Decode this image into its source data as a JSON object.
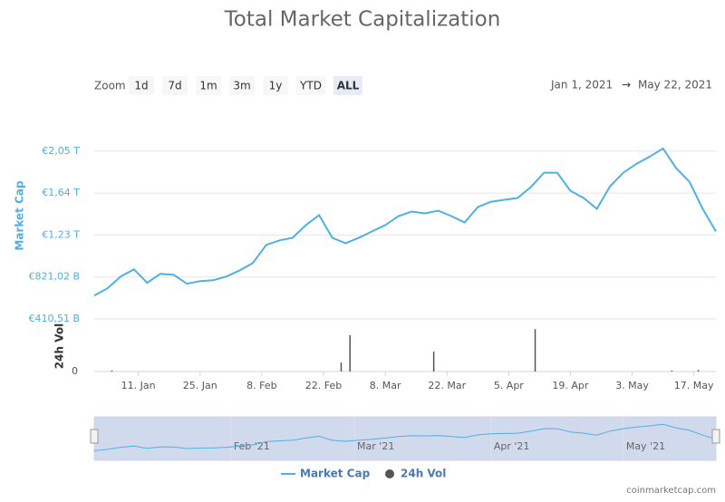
{
  "chart_data": {
    "type": "line",
    "title": "Total Market Capitalization",
    "zoom_label": "Zoom",
    "zoom_buttons": [
      "1d",
      "7d",
      "1m",
      "3m",
      "1y",
      "YTD",
      "ALL"
    ],
    "zoom_selected": "ALL",
    "range_from": "Jan 1, 2021",
    "range_arrow": "→",
    "range_to": "May 22, 2021",
    "y_label": "Market Cap",
    "y2_label": "24h Vol",
    "xlim": [
      "2021-01-01",
      "2021-05-22"
    ],
    "xticks": [
      {
        "value": "2021-01-11",
        "label": "11. Jan"
      },
      {
        "value": "2021-01-25",
        "label": "25. Jan"
      },
      {
        "value": "2021-02-08",
        "label": "8. Feb"
      },
      {
        "value": "2021-02-22",
        "label": "22. Feb"
      },
      {
        "value": "2021-03-08",
        "label": "8. Mar"
      },
      {
        "value": "2021-03-22",
        "label": "22. Mar"
      },
      {
        "value": "2021-04-05",
        "label": "5. Apr"
      },
      {
        "value": "2021-04-19",
        "label": "19. Apr"
      },
      {
        "value": "2021-05-03",
        "label": "3. May"
      },
      {
        "value": "2021-05-17",
        "label": "17. May"
      }
    ],
    "ylim": [
      410.51,
      2290
    ],
    "yticks": [
      {
        "value": 410.51,
        "label": "€410,51 B"
      },
      {
        "value": 821.02,
        "label": "€821,02 B"
      },
      {
        "value": 1231.53,
        "label": "€1,23 T"
      },
      {
        "value": 1642.04,
        "label": "€1,64 T"
      },
      {
        "value": 2052.55,
        "label": "€2,05 T"
      }
    ],
    "y2lim": [
      0,
      100
    ],
    "y2ticks": [
      0
    ],
    "grid": true,
    "x": [
      "2021-01-01",
      "2021-01-04",
      "2021-01-07",
      "2021-01-10",
      "2021-01-13",
      "2021-01-16",
      "2021-01-19",
      "2021-01-22",
      "2021-01-25",
      "2021-01-28",
      "2021-01-31",
      "2021-02-03",
      "2021-02-06",
      "2021-02-09",
      "2021-02-12",
      "2021-02-15",
      "2021-02-18",
      "2021-02-21",
      "2021-02-24",
      "2021-02-27",
      "2021-03-02",
      "2021-03-05",
      "2021-03-08",
      "2021-03-11",
      "2021-03-14",
      "2021-03-17",
      "2021-03-20",
      "2021-03-23",
      "2021-03-26",
      "2021-03-29",
      "2021-04-01",
      "2021-04-04",
      "2021-04-07",
      "2021-04-10",
      "2021-04-13",
      "2021-04-16",
      "2021-04-19",
      "2021-04-22",
      "2021-04-25",
      "2021-04-28",
      "2021-05-01",
      "2021-05-04",
      "2021-05-07",
      "2021-05-10",
      "2021-05-13",
      "2021-05-16",
      "2021-05-19",
      "2021-05-22"
    ],
    "series": [
      {
        "name": "Market Cap",
        "color": "#4fb0e2",
        "values": [
          640,
          710,
          826,
          896,
          764,
          852,
          843,
          755,
          781,
          790,
          826,
          887,
          958,
          1135,
          1179,
          1205,
          1329,
          1426,
          1205,
          1152,
          1205,
          1267,
          1329,
          1417,
          1461,
          1443,
          1470,
          1417,
          1355,
          1505,
          1558,
          1576,
          1594,
          1700,
          1841,
          1841,
          1664,
          1594,
          1488,
          1709,
          1841,
          1929,
          1999,
          2079,
          1885,
          1753,
          1488,
          1267
        ]
      },
      {
        "name": "24h Vol",
        "color": "#555555",
        "axis": "y2",
        "x": [
          "2021-01-05",
          "2021-02-26",
          "2021-02-28",
          "2021-03-19",
          "2021-04-11",
          "2021-05-12",
          "2021-05-18"
        ],
        "values": [
          2,
          18,
          73,
          40,
          85,
          2,
          3
        ]
      }
    ],
    "navigator_ticks": [
      {
        "value": "2021-02-01",
        "label": "Feb '21"
      },
      {
        "value": "2021-03-01",
        "label": "Mar '21"
      },
      {
        "value": "2021-04-01",
        "label": "Apr '21"
      },
      {
        "value": "2021-05-01",
        "label": "May '21"
      }
    ],
    "credit": "coinmarketcap.com"
  }
}
